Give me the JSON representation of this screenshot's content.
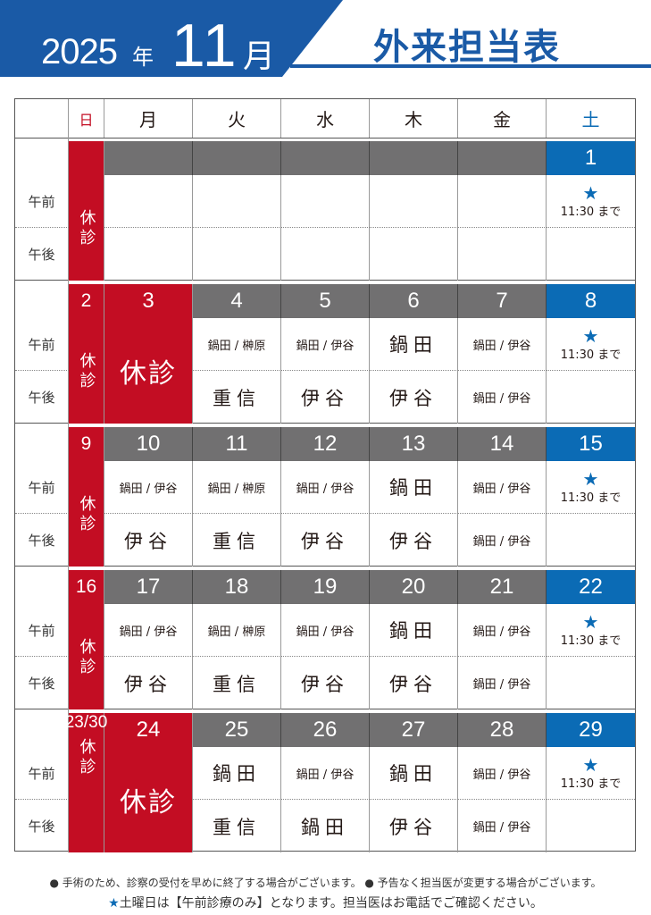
{
  "header": {
    "year": "2025",
    "nen": "年",
    "month": "11",
    "gatsu": "月",
    "title": "外来担当表"
  },
  "weekdays": [
    "日",
    "月",
    "火",
    "水",
    "木",
    "金",
    "土"
  ],
  "row_labels": {
    "am": "午前",
    "pm": "午後"
  },
  "closed": "休診",
  "saturday_note": {
    "icon": "star-icon",
    "text": "11:30 まで",
    "star": "★"
  },
  "colors": {
    "sunday": "#c30d23",
    "saturday": "#0b6bb5",
    "weekday": "#717071",
    "brand": "#1a5aa6"
  },
  "weeks": [
    {
      "sun": "",
      "days": [
        {
          "date": "",
          "am": "",
          "pm": ""
        },
        {
          "date": "",
          "am": "",
          "pm": ""
        },
        {
          "date": "",
          "am": "",
          "pm": ""
        },
        {
          "date": "",
          "am": "",
          "pm": ""
        },
        {
          "date": "",
          "am": "",
          "pm": ""
        }
      ],
      "sat": "1"
    },
    {
      "sun": "2",
      "days": [
        {
          "date": "3",
          "closed": true
        },
        {
          "date": "4",
          "am": "鍋田 / 榊原",
          "pm": "重信"
        },
        {
          "date": "5",
          "am": "鍋田 / 伊谷",
          "pm": "伊谷"
        },
        {
          "date": "6",
          "am": "鍋田",
          "pm": "伊谷"
        },
        {
          "date": "7",
          "am": "鍋田 / 伊谷",
          "pm": "鍋田 / 伊谷"
        }
      ],
      "sat": "8"
    },
    {
      "sun": "9",
      "days": [
        {
          "date": "10",
          "am": "鍋田 / 伊谷",
          "pm": "伊谷"
        },
        {
          "date": "11",
          "am": "鍋田 / 榊原",
          "pm": "重信"
        },
        {
          "date": "12",
          "am": "鍋田 / 伊谷",
          "pm": "伊谷"
        },
        {
          "date": "13",
          "am": "鍋田",
          "pm": "伊谷"
        },
        {
          "date": "14",
          "am": "鍋田 / 伊谷",
          "pm": "鍋田 / 伊谷"
        }
      ],
      "sat": "15"
    },
    {
      "sun": "16",
      "days": [
        {
          "date": "17",
          "am": "鍋田 / 伊谷",
          "pm": "伊谷"
        },
        {
          "date": "18",
          "am": "鍋田 / 榊原",
          "pm": "重信"
        },
        {
          "date": "19",
          "am": "鍋田 / 伊谷",
          "pm": "伊谷"
        },
        {
          "date": "20",
          "am": "鍋田",
          "pm": "伊谷"
        },
        {
          "date": "21",
          "am": "鍋田 / 伊谷",
          "pm": "鍋田 / 伊谷"
        }
      ],
      "sat": "22"
    },
    {
      "sun": "23/30",
      "days": [
        {
          "date": "24",
          "closed": true
        },
        {
          "date": "25",
          "am": "鍋田",
          "pm": "重信"
        },
        {
          "date": "26",
          "am": "鍋田 / 伊谷",
          "pm": "鍋田"
        },
        {
          "date": "27",
          "am": "鍋田",
          "pm": "伊谷"
        },
        {
          "date": "28",
          "am": "鍋田 / 伊谷",
          "pm": "鍋田 / 伊谷"
        }
      ],
      "sat": "29"
    }
  ],
  "footer": {
    "note1": "● 手術のため、診察の受付を早めに終了する場合がございます。 ● 予告なく担当医が変更する場合がございます。",
    "note2_star": "★",
    "note2": "土曜日は【午前診療のみ】となります。担当医はお電話でご確認ください。"
  }
}
